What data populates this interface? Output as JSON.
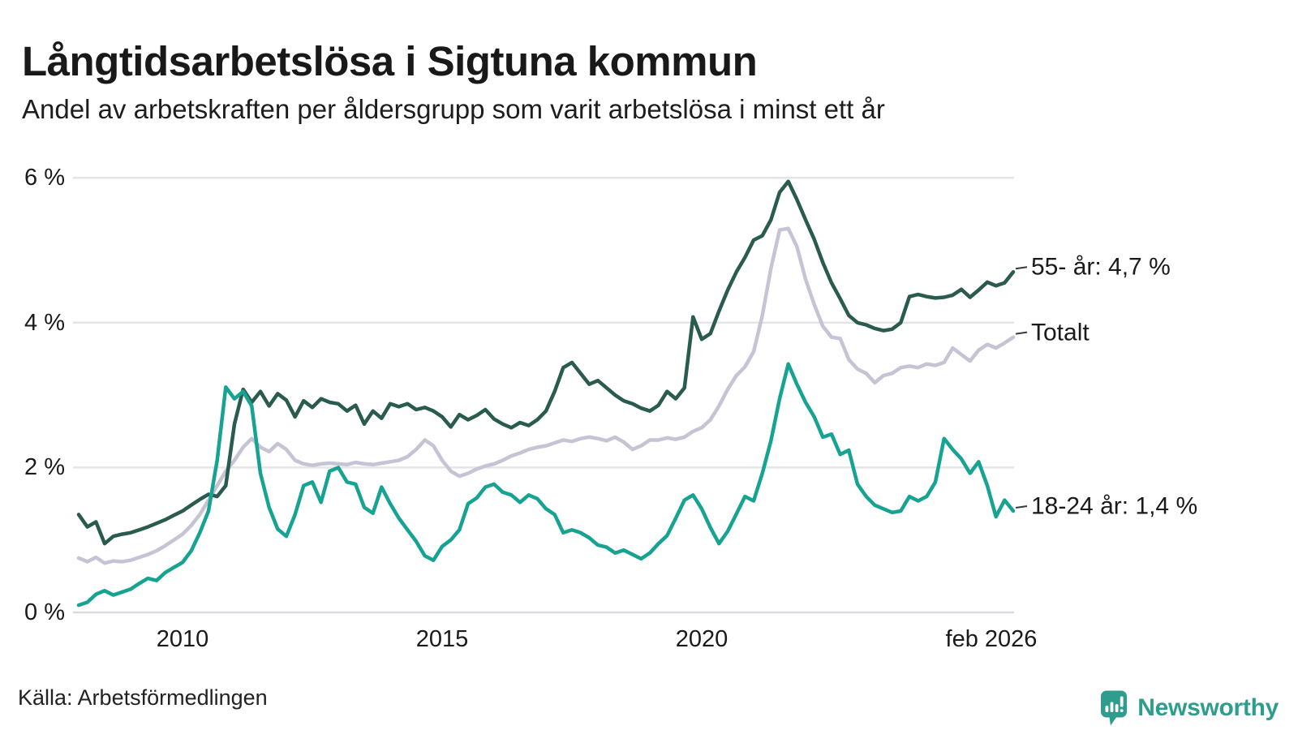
{
  "header": {
    "title": "Långtidsarbetslösa i Sigtuna kommun",
    "subtitle": "Andel av arbetskraften per åldersgrupp som varit arbetslösa i minst ett år"
  },
  "footer": {
    "source": "Källa: Arbetsförmedlingen",
    "brand": "Newsworthy",
    "brand_color": "#2F9D8D"
  },
  "colors": {
    "grid": "#E5E4E8",
    "zero_line": "#DBDAE0",
    "axis_text": "#1A1A1A",
    "end_tick": "#3A3A3A"
  },
  "chart_data": {
    "type": "line",
    "title": "Långtidsarbetslösa i Sigtuna kommun",
    "subtitle": "Andel av arbetskraften per åldersgrupp som varit arbetslösa i minst ett år",
    "unit": "%",
    "x_start": 2008.0,
    "x_step_years": 0.166667,
    "xlim": [
      2008.0,
      2026.083
    ],
    "ylim": [
      0,
      6.3
    ],
    "grid": "horizontal-only",
    "legend_position": "line-end-labels",
    "yticks": [
      {
        "value": 0,
        "label": "0 %"
      },
      {
        "value": 2,
        "label": "2 %"
      },
      {
        "value": 4,
        "label": "4 %"
      },
      {
        "value": 6,
        "label": "6 %"
      }
    ],
    "xticks": [
      {
        "value": 2010,
        "label": "2010"
      },
      {
        "value": 2015,
        "label": "2015"
      },
      {
        "value": 2020,
        "label": "2020"
      },
      {
        "value": 2026.083,
        "label": "feb 2026"
      }
    ],
    "draw_order": [
      1,
      0,
      2
    ],
    "series": [
      {
        "name": "55- år",
        "color": "#2A5B4F",
        "end_label": "55- år: 4,7 %",
        "final_value_pct": 4.7,
        "values": [
          1.35,
          1.18,
          1.25,
          0.95,
          1.05,
          1.08,
          1.1,
          1.14,
          1.18,
          1.23,
          1.28,
          1.34,
          1.4,
          1.48,
          1.56,
          1.63,
          1.6,
          1.75,
          2.6,
          3.08,
          2.9,
          3.05,
          2.85,
          3.02,
          2.93,
          2.7,
          2.92,
          2.83,
          2.95,
          2.9,
          2.88,
          2.78,
          2.86,
          2.6,
          2.78,
          2.68,
          2.88,
          2.84,
          2.88,
          2.8,
          2.83,
          2.78,
          2.7,
          2.56,
          2.73,
          2.66,
          2.72,
          2.8,
          2.67,
          2.6,
          2.55,
          2.62,
          2.58,
          2.66,
          2.78,
          3.05,
          3.38,
          3.45,
          3.3,
          3.15,
          3.2,
          3.1,
          3.0,
          2.92,
          2.88,
          2.82,
          2.78,
          2.86,
          3.05,
          2.95,
          3.1,
          4.08,
          3.77,
          3.85,
          4.16,
          4.45,
          4.7,
          4.9,
          5.14,
          5.2,
          5.42,
          5.8,
          5.95,
          5.7,
          5.42,
          5.15,
          4.83,
          4.55,
          4.33,
          4.1,
          4.0,
          3.97,
          3.92,
          3.89,
          3.91,
          4.0,
          4.36,
          4.39,
          4.36,
          4.34,
          4.35,
          4.38,
          4.46,
          4.35,
          4.45,
          4.56,
          4.51,
          4.55,
          4.7
        ]
      },
      {
        "name": "Totalt",
        "color": "#C6C3D4",
        "end_label": "Totalt",
        "final_value_pct": 3.8,
        "values": [
          0.75,
          0.7,
          0.76,
          0.68,
          0.71,
          0.7,
          0.72,
          0.76,
          0.8,
          0.85,
          0.92,
          1.0,
          1.08,
          1.2,
          1.35,
          1.55,
          1.75,
          1.95,
          2.1,
          2.28,
          2.4,
          2.28,
          2.22,
          2.33,
          2.25,
          2.1,
          2.05,
          2.03,
          2.05,
          2.06,
          2.05,
          2.04,
          2.07,
          2.05,
          2.04,
          2.06,
          2.08,
          2.1,
          2.15,
          2.25,
          2.38,
          2.3,
          2.1,
          1.95,
          1.88,
          1.92,
          1.98,
          2.02,
          2.05,
          2.1,
          2.16,
          2.2,
          2.25,
          2.28,
          2.3,
          2.34,
          2.38,
          2.36,
          2.4,
          2.42,
          2.4,
          2.37,
          2.42,
          2.35,
          2.25,
          2.3,
          2.38,
          2.38,
          2.41,
          2.39,
          2.42,
          2.5,
          2.55,
          2.66,
          2.85,
          3.08,
          3.27,
          3.39,
          3.6,
          4.1,
          4.75,
          5.28,
          5.3,
          5.05,
          4.6,
          4.25,
          3.95,
          3.8,
          3.78,
          3.49,
          3.36,
          3.3,
          3.17,
          3.27,
          3.3,
          3.38,
          3.4,
          3.38,
          3.43,
          3.41,
          3.45,
          3.65,
          3.56,
          3.47,
          3.62,
          3.7,
          3.65,
          3.72,
          3.8
        ]
      },
      {
        "name": "18-24 år",
        "color": "#17A392",
        "end_label": "18-24 år: 1,4 %",
        "final_value_pct": 1.4,
        "values": [
          0.1,
          0.14,
          0.25,
          0.3,
          0.24,
          0.28,
          0.32,
          0.4,
          0.47,
          0.44,
          0.55,
          0.62,
          0.69,
          0.85,
          1.1,
          1.4,
          2.1,
          3.11,
          2.95,
          3.05,
          2.85,
          1.92,
          1.45,
          1.15,
          1.05,
          1.35,
          1.75,
          1.8,
          1.52,
          1.95,
          2.0,
          1.8,
          1.77,
          1.45,
          1.37,
          1.73,
          1.5,
          1.3,
          1.14,
          0.98,
          0.78,
          0.72,
          0.91,
          1.0,
          1.14,
          1.5,
          1.58,
          1.73,
          1.77,
          1.66,
          1.62,
          1.52,
          1.62,
          1.57,
          1.43,
          1.35,
          1.1,
          1.14,
          1.1,
          1.03,
          0.93,
          0.9,
          0.82,
          0.86,
          0.8,
          0.74,
          0.82,
          0.95,
          1.06,
          1.3,
          1.55,
          1.62,
          1.43,
          1.17,
          0.95,
          1.12,
          1.36,
          1.6,
          1.54,
          1.92,
          2.37,
          2.95,
          3.43,
          3.15,
          2.9,
          2.7,
          2.42,
          2.46,
          2.18,
          2.24,
          1.77,
          1.6,
          1.48,
          1.43,
          1.38,
          1.4,
          1.6,
          1.54,
          1.6,
          1.8,
          2.4,
          2.25,
          2.12,
          1.92,
          2.08,
          1.75,
          1.32,
          1.55,
          1.4
        ]
      }
    ]
  }
}
